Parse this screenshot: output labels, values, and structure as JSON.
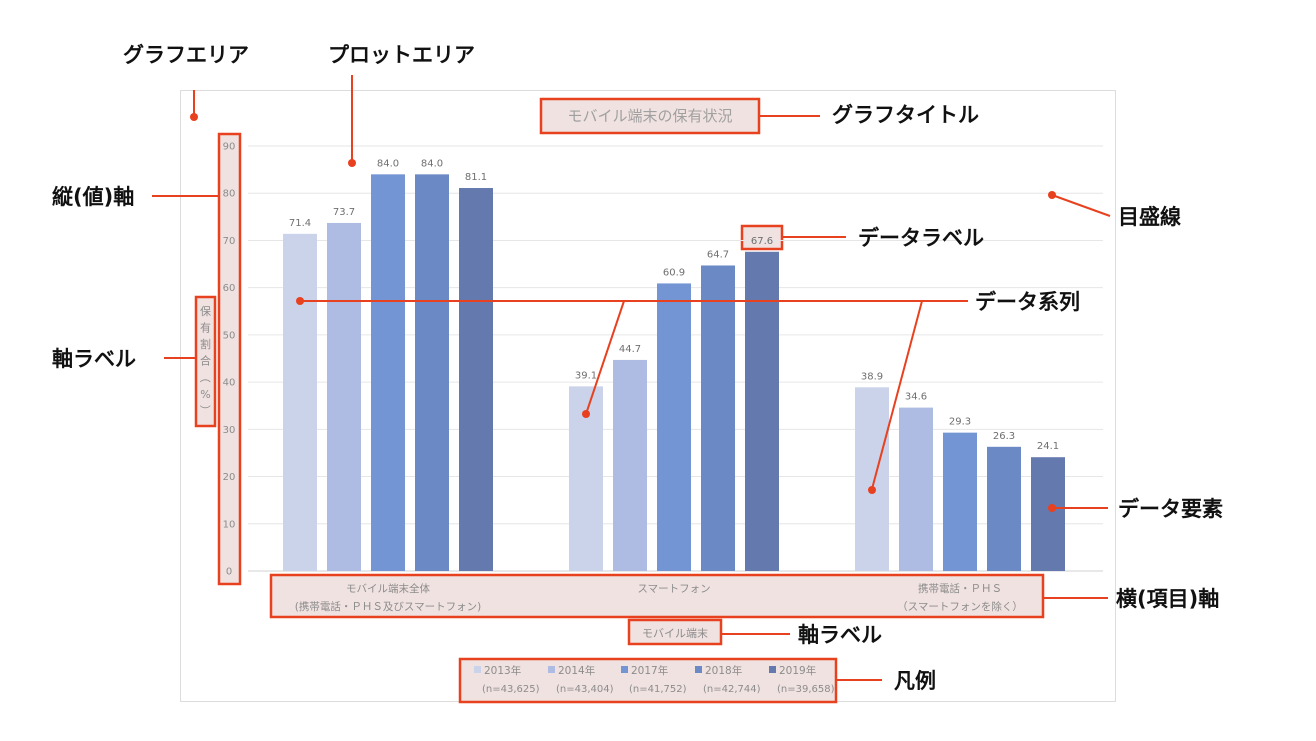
{
  "chart_data": {
    "type": "bar",
    "title": "モバイル端末の保有状況",
    "xlabel": "モバイル端末",
    "ylabel": "保有割合（%）",
    "ylim": [
      0,
      90
    ],
    "yticks": [
      0,
      10,
      20,
      30,
      40,
      50,
      60,
      70,
      80,
      90
    ],
    "grid": true,
    "legend_position": "bottom",
    "categories": [
      [
        "モバイル端末全体",
        "(携帯電話・ＰＨＳ及びスマートフォン)"
      ],
      [
        "スマートフォン"
      ],
      [
        "携帯電話・ＰＨＳ",
        "（スマートフォンを除く）"
      ]
    ],
    "series": [
      {
        "name": "2013年",
        "sample": "(n=43,625)",
        "color": "#cbd3ea",
        "values": [
          71.4,
          39.1,
          38.9
        ]
      },
      {
        "name": "2014年",
        "sample": "(n=43,404)",
        "color": "#aebbe2",
        "values": [
          73.7,
          44.7,
          34.6
        ]
      },
      {
        "name": "2017年",
        "sample": "(n=41,752)",
        "color": "#7495d4",
        "values": [
          84.0,
          60.9,
          29.3
        ]
      },
      {
        "name": "2018年",
        "sample": "(n=42,744)",
        "color": "#6b89c4",
        "values": [
          84.0,
          64.7,
          26.3
        ]
      },
      {
        "name": "2019年",
        "sample": "(n=39,658)",
        "color": "#6479ae",
        "values": [
          81.1,
          67.6,
          24.1
        ]
      }
    ]
  },
  "annotations": {
    "chart_area": "グラフエリア",
    "plot_area": "プロットエリア",
    "chart_title": "グラフタイトル",
    "value_axis": "縦(値)軸",
    "gridlines": "目盛線",
    "data_label": "データラベル",
    "data_series": "データ系列",
    "axis_label_y": "軸ラベル",
    "data_point": "データ要素",
    "category_axis": "横(項目)軸",
    "axis_label_x": "軸ラベル",
    "legend": "凡例"
  },
  "colors": {
    "highlight": "#e8411f",
    "highlight_fill": "#f0e2e1",
    "grid": "#e6e6e6",
    "text_muted": "#8c8c8c"
  }
}
